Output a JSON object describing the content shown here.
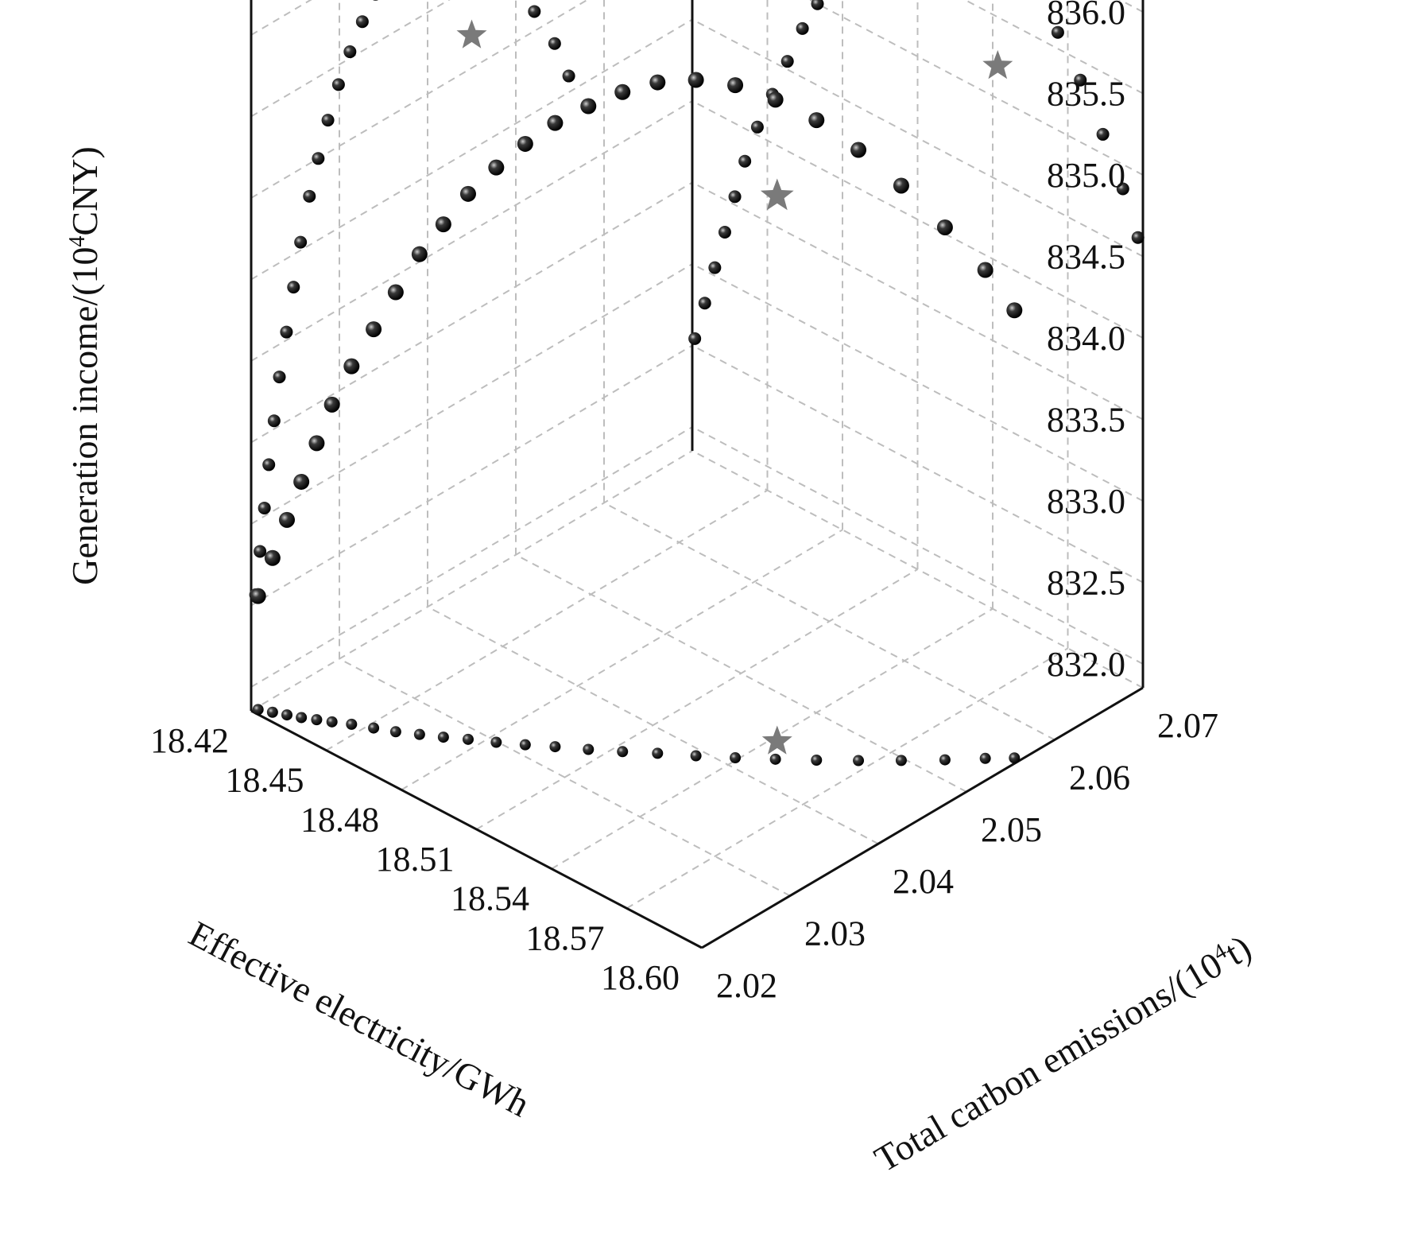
{
  "chart_data": {
    "type": "scatter",
    "title": "",
    "axes": {
      "x": {
        "label": "Effective electricity/GWh",
        "ticks": [
          "18.42",
          "18.45",
          "18.48",
          "18.51",
          "18.54",
          "18.57",
          "18.60"
        ],
        "range": [
          18.42,
          18.6
        ]
      },
      "y": {
        "label_main": "Total carbon emissions/(10",
        "label_sup": "4",
        "label_end": "t)",
        "ticks": [
          "2.02",
          "2.03",
          "2.04",
          "2.05",
          "2.06",
          "2.07"
        ],
        "range": [
          2.02,
          2.07
        ]
      },
      "z": {
        "label_main": "Generation income/(10",
        "label_sup": "4",
        "label_end": "CNY)",
        "ticks": [
          "832.0",
          "832.5",
          "833.0",
          "833.5",
          "834.0",
          "834.5",
          "835.0",
          "835.5",
          "836.0"
        ],
        "range": [
          832.0,
          836.0
        ]
      }
    },
    "grid": true,
    "series": [
      {
        "marker": "sphere",
        "color": "#111111",
        "x": [
          18.421,
          18.425,
          18.429,
          18.433,
          18.437,
          18.441,
          18.446,
          18.452,
          18.458,
          18.464,
          18.47,
          18.476,
          18.483,
          18.49,
          18.497,
          18.505,
          18.513,
          18.521,
          18.53,
          18.539,
          18.548,
          18.557,
          18.566,
          18.575,
          18.584,
          18.592,
          18.598
        ],
        "y": [
          2.0205,
          2.021,
          2.0215,
          2.022,
          2.0226,
          2.0232,
          2.024,
          2.0248,
          2.0256,
          2.0266,
          2.0276,
          2.0287,
          2.0299,
          2.0312,
          2.0326,
          2.0341,
          2.0357,
          2.0374,
          2.0392,
          2.0411,
          2.0431,
          2.0452,
          2.0474,
          2.0497,
          2.0521,
          2.0544,
          2.056
        ],
        "z": [
          832.55,
          832.8,
          833.05,
          833.3,
          833.55,
          833.8,
          834.05,
          834.3,
          834.55,
          834.8,
          835.0,
          835.2,
          835.38,
          835.54,
          835.68,
          835.8,
          835.9,
          835.97,
          836.0,
          835.98,
          835.9,
          835.78,
          835.6,
          835.38,
          835.12,
          834.85,
          834.6
        ]
      }
    ],
    "highlight": {
      "marker": "star",
      "color": "#7a7a7a",
      "x": 18.542,
      "y": 2.045,
      "z": 835.2
    }
  }
}
